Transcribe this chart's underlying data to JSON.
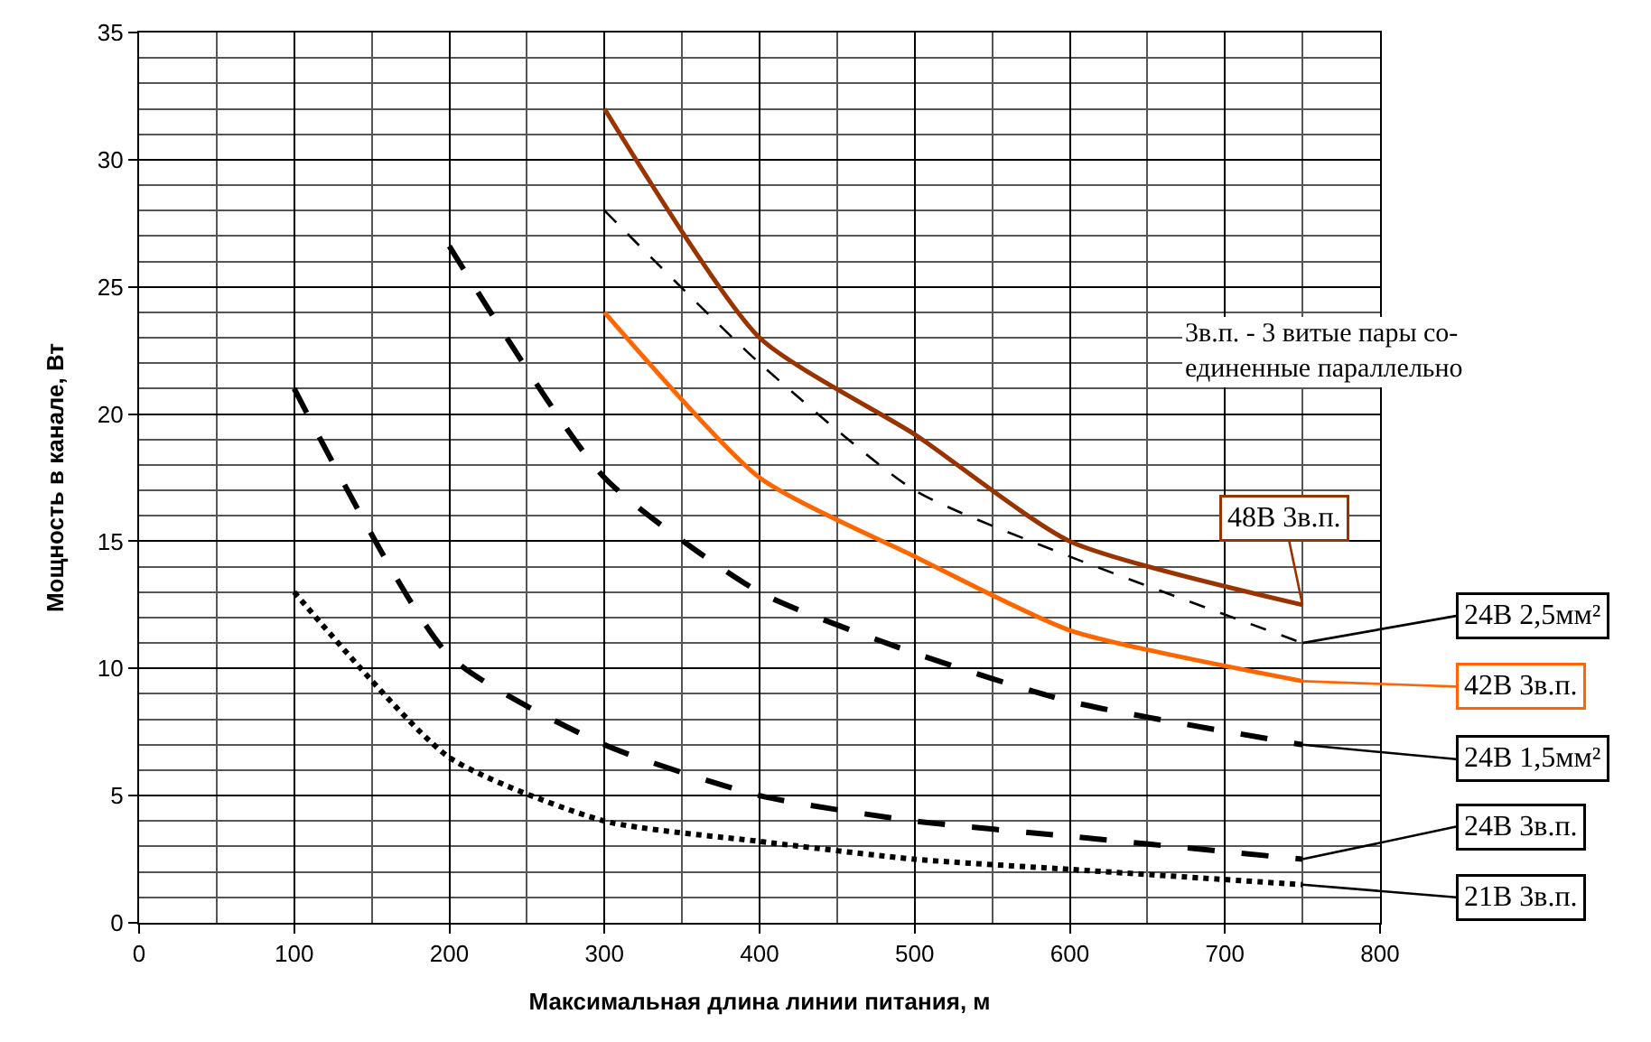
{
  "chart_data": {
    "type": "line",
    "xlabel": "Максимальная длина линии питания, м",
    "ylabel": "Мощность в канале, Вт",
    "xlim": [
      0,
      800
    ],
    "xticks": [
      0,
      100,
      200,
      300,
      400,
      500,
      600,
      700,
      800
    ],
    "ylim": [
      0,
      35
    ],
    "yticks": [
      0,
      5,
      10,
      15,
      20,
      25,
      30,
      35
    ],
    "grid": true,
    "legend": "right",
    "series": [
      {
        "name": "48В 3в.п.",
        "color": "#993300",
        "line_style": "solid",
        "x": [
          300,
          400,
          500,
          600,
          750
        ],
        "values": [
          32,
          23,
          19.2,
          15,
          12.5
        ]
      },
      {
        "name": "24В 2,5мм²",
        "color": "#000000",
        "line_style": "dashed",
        "x": [
          300,
          400,
          500,
          600,
          750
        ],
        "values": [
          28,
          22,
          17,
          14.4,
          11
        ]
      },
      {
        "name": "42В 3в.п.",
        "color": "#ff6600",
        "line_style": "solid",
        "x": [
          300,
          400,
          500,
          600,
          750
        ],
        "values": [
          24,
          17.5,
          14.4,
          11.5,
          9.5
        ]
      },
      {
        "name": "24В 1,5мм²",
        "color": "#000000",
        "line_style": "longdash",
        "x": [
          200,
          300,
          400,
          500,
          600,
          750
        ],
        "values": [
          26.6,
          17.5,
          13,
          10.6,
          8.7,
          7
        ]
      },
      {
        "name": "24В 3в.п.",
        "color": "#000000",
        "line_style": "longdash",
        "x": [
          100,
          200,
          300,
          400,
          500,
          600,
          750
        ],
        "values": [
          21,
          10.5,
          7,
          5,
          4,
          3.4,
          2.5
        ]
      },
      {
        "name": "21В 3в.п.",
        "color": "#000000",
        "line_style": "dotted",
        "x": [
          100,
          200,
          300,
          400,
          500,
          600,
          750
        ],
        "values": [
          13,
          6.5,
          4,
          3.2,
          2.5,
          2.1,
          1.5
        ]
      }
    ],
    "annotations": [
      "3в.п. - 3 витые пары со-\nединенные параллельно"
    ]
  }
}
